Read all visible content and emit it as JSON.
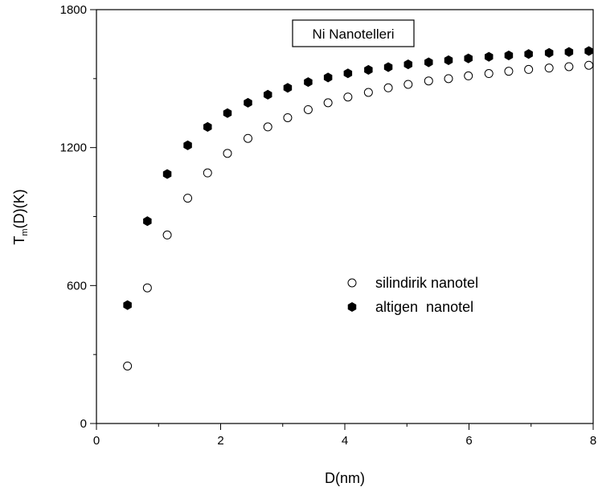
{
  "chart_data": {
    "type": "scatter",
    "title": "Ni Nanotelleri",
    "xlabel": "D(nm)",
    "ylabel_main": "T",
    "ylabel_sub": "m",
    "ylabel_rest": "(D)(K)",
    "xlim": [
      0,
      8
    ],
    "ylim": [
      0,
      1800
    ],
    "x_ticks": [
      0,
      2,
      4,
      6,
      8
    ],
    "y_ticks": [
      0,
      600,
      1200,
      1800
    ],
    "x_tick_labels": [
      "0",
      "2",
      "4",
      "6",
      "8"
    ],
    "y_tick_labels": [
      "0",
      "600",
      "1200",
      "1800"
    ],
    "legend_position": "center-right",
    "grid": false,
    "series": [
      {
        "name": "silindirik nanotel",
        "marker": "open-circle",
        "x": [
          0.5,
          0.82,
          1.14,
          1.47,
          1.79,
          2.11,
          2.44,
          2.76,
          3.08,
          3.41,
          3.73,
          4.05,
          4.38,
          4.7,
          5.02,
          5.35,
          5.67,
          5.99,
          6.32,
          6.64,
          6.96,
          7.29,
          7.61,
          7.93
        ],
        "y": [
          250,
          590,
          820,
          980,
          1090,
          1175,
          1240,
          1290,
          1330,
          1365,
          1395,
          1420,
          1440,
          1460,
          1475,
          1490,
          1500,
          1512,
          1522,
          1532,
          1540,
          1546,
          1552,
          1558
        ]
      },
      {
        "name": "altigen  nanotel",
        "marker": "filled-hexagon",
        "x": [
          0.5,
          0.82,
          1.14,
          1.47,
          1.79,
          2.11,
          2.44,
          2.76,
          3.08,
          3.41,
          3.73,
          4.05,
          4.38,
          4.7,
          5.02,
          5.35,
          5.67,
          5.99,
          6.32,
          6.64,
          6.96,
          7.29,
          7.61,
          7.93
        ],
        "y": [
          515,
          880,
          1085,
          1210,
          1290,
          1350,
          1395,
          1430,
          1460,
          1485,
          1505,
          1523,
          1538,
          1550,
          1562,
          1571,
          1580,
          1588,
          1595,
          1601,
          1607,
          1612,
          1616,
          1620
        ]
      }
    ]
  }
}
